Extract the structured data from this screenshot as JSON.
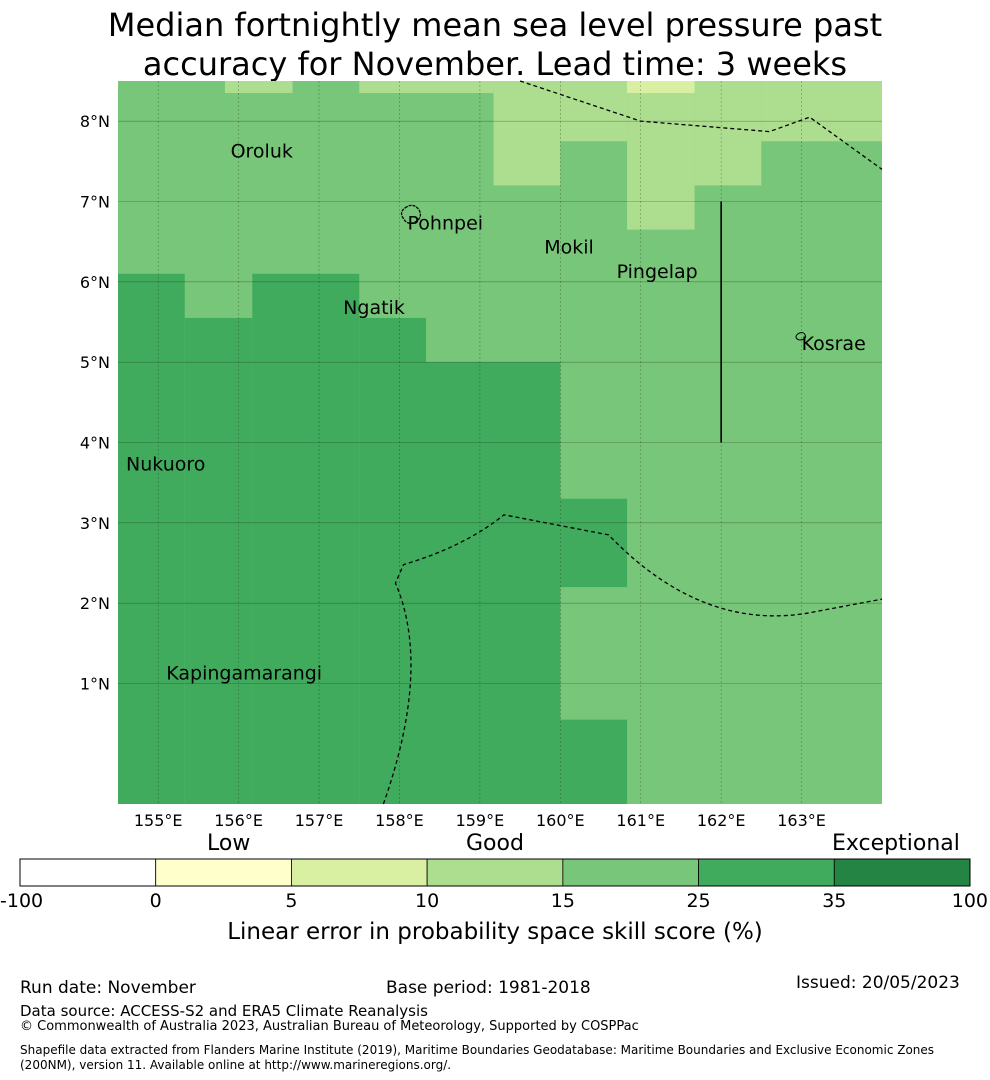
{
  "title_line1": "Median fortnightly mean sea level pressure past",
  "title_line2": "accuracy for November. Lead time: 3 weeks",
  "map": {
    "lon_range": [
      154.5,
      164.0
    ],
    "lat_range": [
      -0.5,
      8.5
    ],
    "lon_ticks": [
      155,
      156,
      157,
      158,
      159,
      160,
      161,
      162,
      163
    ],
    "lon_tick_labels": [
      "155°E",
      "156°E",
      "157°E",
      "158°E",
      "159°E",
      "160°E",
      "161°E",
      "162°E",
      "163°E"
    ],
    "lat_ticks": [
      1,
      2,
      3,
      4,
      5,
      6,
      7,
      8
    ],
    "lat_tick_labels": [
      "1°N",
      "2°N",
      "3°N",
      "4°N",
      "5°N",
      "6°N",
      "7°N",
      "8°N"
    ],
    "places": [
      {
        "name": "Oroluk",
        "lon": 155.9,
        "lat": 7.55
      },
      {
        "name": "Pohnpei",
        "lon": 158.1,
        "lat": 6.65
      },
      {
        "name": "Mokil",
        "lon": 159.8,
        "lat": 6.35
      },
      {
        "name": "Pingelap",
        "lon": 160.7,
        "lat": 6.05
      },
      {
        "name": "Ngatik",
        "lon": 157.3,
        "lat": 5.6
      },
      {
        "name": "Kosrae",
        "lon": 163.0,
        "lat": 5.15
      },
      {
        "name": "Nukuoro",
        "lon": 154.6,
        "lat": 3.65
      },
      {
        "name": "Kapingamarangi",
        "lon": 155.1,
        "lat": 1.05
      }
    ],
    "skill_grid_note": "cells valued by colorbar category index (0-6)",
    "cells": [
      {
        "lon0": 154.5,
        "lon1": 155.33,
        "lat0": -0.5,
        "lat1": 6.1,
        "cat": 5
      },
      {
        "lon0": 155.33,
        "lon1": 156.17,
        "lat0": -0.5,
        "lat1": 5.55,
        "cat": 5
      },
      {
        "lon0": 156.17,
        "lon1": 157.5,
        "lat0": -0.5,
        "lat1": 6.1,
        "cat": 5
      },
      {
        "lon0": 157.5,
        "lon1": 158.33,
        "lat0": -0.5,
        "lat1": 5.55,
        "cat": 5
      },
      {
        "lon0": 158.33,
        "lon1": 160.0,
        "lat0": -0.5,
        "lat1": 5.0,
        "cat": 5
      },
      {
        "lon0": 160.0,
        "lon1": 160.83,
        "lat0": 2.2,
        "lat1": 3.3,
        "cat": 5
      },
      {
        "lon0": 160.0,
        "lon1": 160.83,
        "lat0": -0.5,
        "lat1": 0.55,
        "cat": 5
      },
      {
        "lon0": 159.17,
        "lon1": 160.0,
        "lat0": 7.2,
        "lat1": 8.5,
        "cat": 3
      },
      {
        "lon0": 160.0,
        "lon1": 160.83,
        "lat0": 7.75,
        "lat1": 8.5,
        "cat": 3
      },
      {
        "lon0": 160.83,
        "lon1": 161.67,
        "lat0": 6.65,
        "lat1": 8.5,
        "cat": 3
      },
      {
        "lon0": 161.67,
        "lon1": 162.5,
        "lat0": 7.2,
        "lat1": 8.5,
        "cat": 3
      },
      {
        "lon0": 162.5,
        "lon1": 164.0,
        "lat0": 7.75,
        "lat1": 8.5,
        "cat": 3
      },
      {
        "lon0": 155.83,
        "lon1": 156.67,
        "lat0": 8.35,
        "lat1": 8.5,
        "cat": 3
      },
      {
        "lon0": 157.5,
        "lon1": 159.17,
        "lat0": 8.35,
        "lat1": 8.5,
        "cat": 3
      },
      {
        "lon0": 160.83,
        "lon1": 161.67,
        "lat0": 8.35,
        "lat1": 8.5,
        "cat": 2
      }
    ],
    "background_cat": 4
  },
  "colorbar": {
    "colors": [
      "#ffffff",
      "#ffffcc",
      "#d9f0a3",
      "#addd8e",
      "#78c679",
      "#41ab5d",
      "#238443"
    ],
    "boundary_labels": [
      "-100",
      "0",
      "5",
      "10",
      "15",
      "25",
      "35",
      "100"
    ],
    "category_labels": {
      "low": "Low",
      "good": "Good",
      "exceptional": "Exceptional"
    },
    "title": "Linear error in probability space skill score (%)"
  },
  "footer": {
    "run_date": "Run date: November",
    "base_period": "Base period: 1981-2018",
    "issued": "Issued: 20/05/2023",
    "data_source": "Data source: ACCESS-S2 and ERA5 Climate Reanalysis",
    "copyright": "© Commonwealth of Australia 2023, Australian Bureau of Meteorology, Supported by COSPPac",
    "shapefile": "Shapefile data extracted from Flanders Marine Institute (2019), Maritime Boundaries Geodatabase: Maritime Boundaries and Exclusive Economic Zones (200NM), version 11. Available online at http://www.marineregions.org/."
  }
}
